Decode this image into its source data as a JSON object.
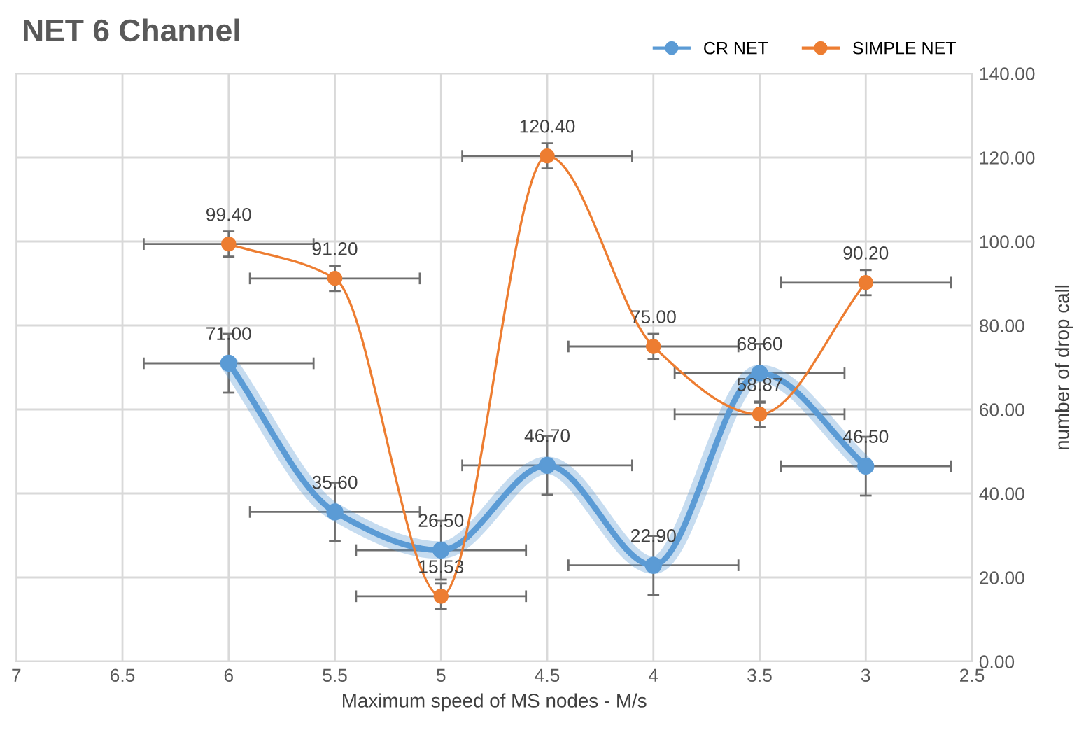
{
  "chart_data": {
    "type": "line",
    "title": "NET 6 Channel",
    "xlabel": "Maximum speed of MS nodes - M/s",
    "ylabel": "number of drop call",
    "x": [
      6,
      5.5,
      5,
      4.5,
      4,
      3.5,
      3
    ],
    "series": [
      {
        "name": "CR NET",
        "color": "#5b9bd5",
        "values": [
          71.0,
          35.6,
          26.5,
          46.7,
          22.9,
          68.6,
          46.5
        ],
        "value_labels": [
          "71.00",
          "35.60",
          "26.50",
          "46.70",
          "22.90",
          "68.60",
          "46.50"
        ],
        "errors": [
          7,
          7,
          7,
          7,
          7,
          7,
          7
        ],
        "xerrors": [
          0.4,
          0.4,
          0.4,
          0.4,
          0.4,
          0.4,
          0.4
        ]
      },
      {
        "name": "SIMPLE NET",
        "color": "#ed7d31",
        "values": [
          99.4,
          91.2,
          15.53,
          120.4,
          75.0,
          58.87,
          90.2
        ],
        "value_labels": [
          "99.40",
          "91.20",
          "15.53",
          "120.40",
          "75.00",
          "58.87",
          "90.20"
        ],
        "errors": [
          3,
          3,
          3,
          3,
          3,
          3,
          3
        ],
        "xerrors": [
          0.4,
          0.4,
          0.4,
          0.4,
          0.4,
          0.4,
          0.4
        ]
      }
    ],
    "xlim": [
      7,
      2.5
    ],
    "xticks": [
      7,
      6.5,
      6,
      5.5,
      5,
      4.5,
      4,
      3.5,
      3,
      2.5
    ],
    "ylim": [
      0,
      140
    ],
    "yticks": [
      {
        "value": 0,
        "label": "0.00"
      },
      {
        "value": 20,
        "label": "20.00"
      },
      {
        "value": 40,
        "label": "40.00"
      },
      {
        "value": 60,
        "label": "60.00"
      },
      {
        "value": 80,
        "label": "80.00"
      },
      {
        "value": 100,
        "label": "100.00"
      },
      {
        "value": 120,
        "label": "120.00"
      },
      {
        "value": 140,
        "label": "140.00"
      }
    ],
    "grid": true,
    "legend": "top right",
    "marker": "circle",
    "line_style": "solid"
  }
}
